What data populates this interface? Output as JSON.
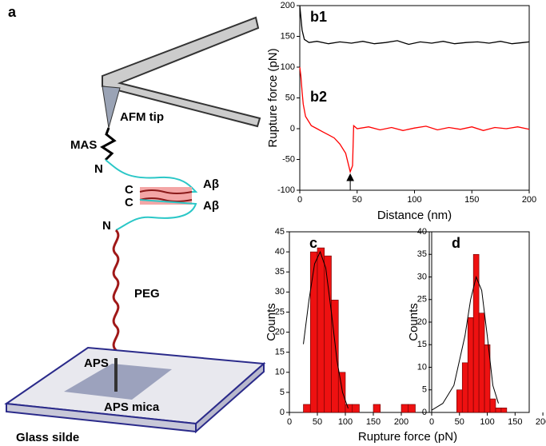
{
  "diagram": {
    "panel": "a",
    "labels": [
      "AFM tip",
      "MAS",
      "N",
      "C",
      "C",
      "Aβ",
      "Aβ",
      "N",
      "PEG",
      "APS",
      "APS mica",
      "Glass silde"
    ]
  },
  "chart_data": [
    {
      "type": "line",
      "ylabel": "Rupture force (pN)",
      "xlabel": "Distance (nm)",
      "xlim": [
        0,
        200
      ],
      "xticks": [
        0,
        50,
        100,
        150,
        200
      ],
      "ylim": [
        -100,
        200
      ],
      "yticks": [
        -100,
        -50,
        0,
        50,
        100,
        150,
        200
      ],
      "annotations": [
        "b1",
        "b2"
      ],
      "series": [
        {
          "name": "b1",
          "color": "#000000",
          "x": [
            0,
            2,
            4,
            8,
            15,
            25,
            35,
            45,
            55,
            65,
            75,
            85,
            95,
            105,
            115,
            125,
            135,
            145,
            155,
            165,
            175,
            185,
            195,
            200
          ],
          "values": [
            200,
            160,
            145,
            140,
            142,
            138,
            141,
            139,
            142,
            138,
            140,
            143,
            137,
            141,
            139,
            142,
            138,
            140,
            141,
            139,
            142,
            138,
            140,
            141
          ]
        },
        {
          "name": "b2",
          "color": "#ff0000",
          "x": [
            0,
            1,
            2,
            3,
            5,
            10,
            15,
            20,
            25,
            30,
            35,
            40,
            44,
            46,
            47,
            50,
            60,
            70,
            80,
            90,
            100,
            110,
            120,
            130,
            140,
            150,
            160,
            170,
            180,
            190,
            200
          ],
          "values": [
            100,
            85,
            60,
            40,
            20,
            5,
            0,
            -5,
            -10,
            -15,
            -25,
            -40,
            -70,
            -60,
            5,
            0,
            3,
            -2,
            2,
            -3,
            1,
            4,
            -2,
            2,
            -1,
            3,
            -3,
            2,
            0,
            3,
            -1
          ]
        }
      ]
    },
    {
      "type": "histogram",
      "panel": "c",
      "ylabel": "Counts",
      "xlabel": "Rupture force (pN)",
      "color": "#ee1111",
      "xlim": [
        0,
        250
      ],
      "xticks": [
        0,
        50,
        100,
        150,
        200
      ],
      "ylim": [
        0,
        45
      ],
      "yticks": [
        0,
        5,
        10,
        15,
        20,
        25,
        30,
        35,
        40,
        45
      ],
      "bins": [
        25,
        37.5,
        50,
        62.5,
        75,
        87.5,
        100,
        112.5,
        125,
        137.5,
        150,
        162.5,
        175,
        187.5,
        200,
        212.5,
        225
      ],
      "values": [
        2,
        40,
        41,
        39,
        28,
        10,
        2,
        2,
        0,
        0,
        2,
        0,
        0,
        0,
        2,
        2
      ],
      "fit": {
        "x": [
          25,
          35,
          45,
          55,
          65,
          75,
          85,
          95,
          105
        ],
        "values": [
          17,
          28,
          37,
          40,
          36,
          25,
          13,
          5,
          1
        ]
      }
    },
    {
      "type": "histogram",
      "panel": "d",
      "ylabel": "Counts",
      "color": "#ee1111",
      "xlim": [
        0,
        220
      ],
      "xticks": [
        0,
        50,
        100,
        150,
        200
      ],
      "ylim": [
        0,
        40
      ],
      "yticks": [
        0,
        5,
        10,
        15,
        20,
        25,
        30,
        35,
        40
      ],
      "bins": [
        45,
        55,
        65,
        75,
        85,
        95,
        105,
        115,
        125,
        135
      ],
      "values": [
        5,
        11,
        21,
        35,
        22,
        15,
        3,
        1,
        1
      ],
      "fit": {
        "x": [
          0,
          20,
          40,
          60,
          70,
          80,
          90,
          100,
          110,
          120
        ],
        "values": [
          0.5,
          2,
          6,
          17,
          25,
          30,
          27,
          17,
          6,
          2
        ]
      }
    }
  ]
}
